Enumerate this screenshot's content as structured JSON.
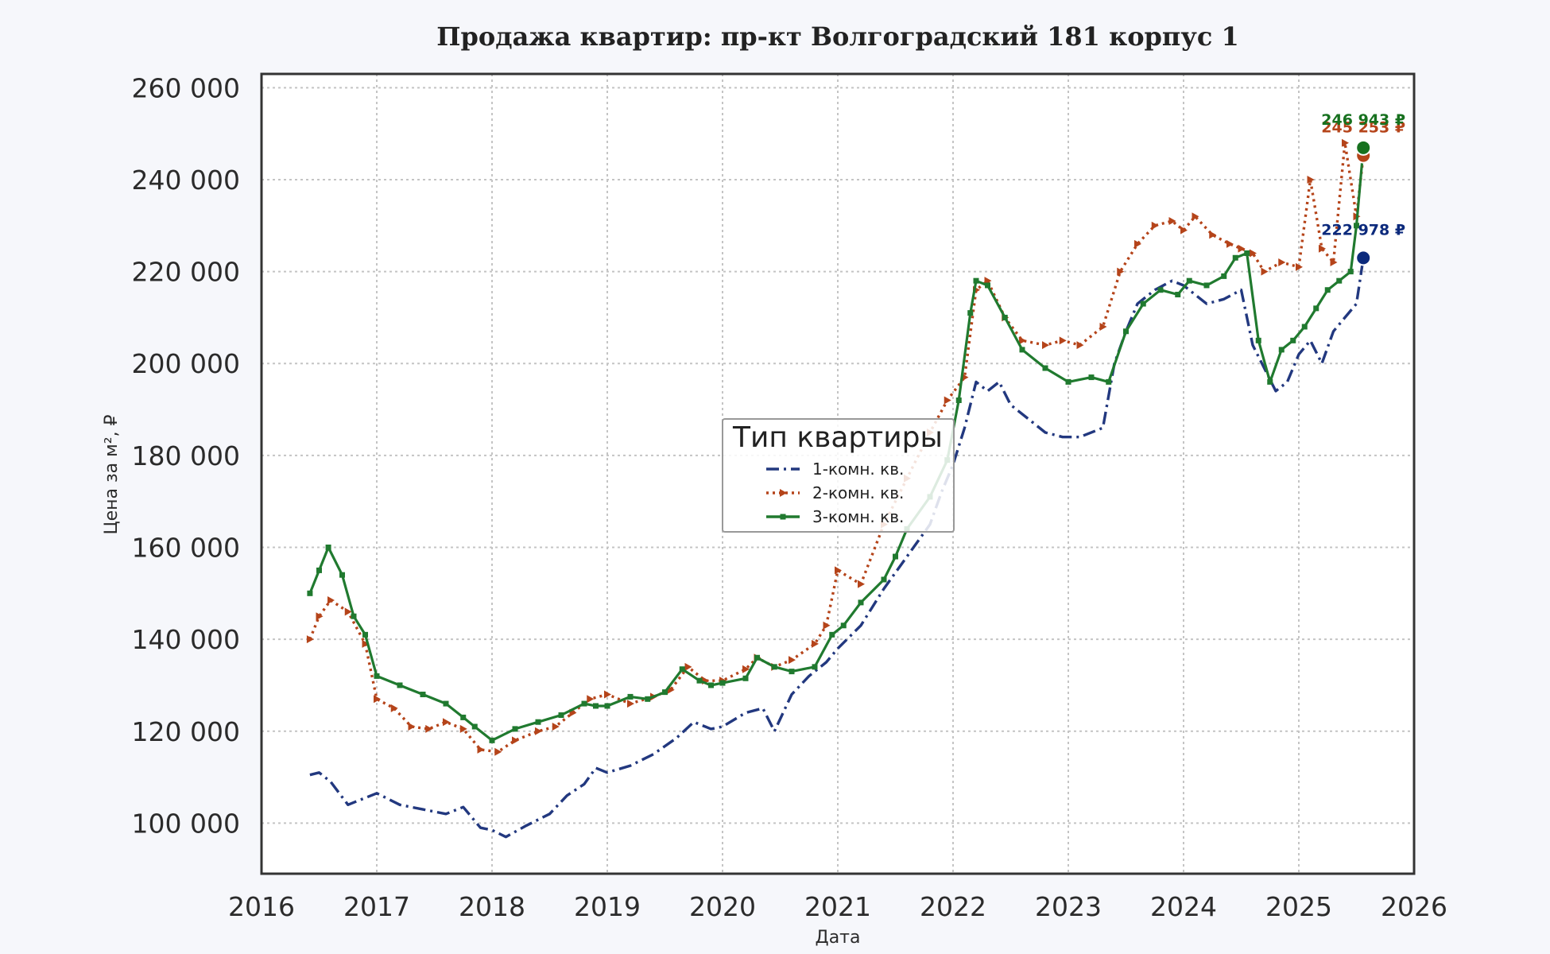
{
  "chart_data": {
    "type": "line",
    "title": "Продажа квартир: пр-кт Волгоградский 181 корпус 1",
    "xlabel": "Дата",
    "ylabel": "Цена за м², ₽",
    "xlim": [
      2016.0,
      2026.0
    ],
    "ylim": [
      89000,
      263000
    ],
    "x_ticks": [
      2016,
      2017,
      2018,
      2019,
      2020,
      2021,
      2022,
      2023,
      2024,
      2025,
      2026
    ],
    "y_ticks": [
      100000,
      120000,
      140000,
      160000,
      180000,
      200000,
      220000,
      240000,
      260000
    ],
    "y_tick_labels": [
      "100 000",
      "120 000",
      "140 000",
      "160 000",
      "180 000",
      "200 000",
      "220 000",
      "240 000",
      "260 000"
    ],
    "grid": true,
    "legend": {
      "title": "Тип квартиры",
      "position": "center"
    },
    "series": [
      {
        "name": "1-комн. кв.",
        "color": "#22387f",
        "style": "dashdot",
        "x": [
          2016.42,
          2016.5,
          2016.6,
          2016.75,
          2016.9,
          2017.0,
          2017.2,
          2017.4,
          2017.6,
          2017.75,
          2017.9,
          2018.0,
          2018.12,
          2018.3,
          2018.5,
          2018.65,
          2018.8,
          2018.9,
          2019.0,
          2019.2,
          2019.4,
          2019.6,
          2019.75,
          2019.9,
          2020.0,
          2020.2,
          2020.35,
          2020.45,
          2020.6,
          2020.75,
          2020.9,
          2021.0,
          2021.2,
          2021.4,
          2021.6,
          2021.8,
          2021.9,
          2022.0,
          2022.1,
          2022.2,
          2022.3,
          2022.4,
          2022.5,
          2022.65,
          2022.8,
          2022.95,
          2023.1,
          2023.3,
          2023.4,
          2023.5,
          2023.6,
          2023.75,
          2023.9,
          2024.0,
          2024.2,
          2024.35,
          2024.5,
          2024.6,
          2024.7,
          2024.8,
          2024.9,
          2025.0,
          2025.1,
          2025.2,
          2025.3,
          2025.4,
          2025.5,
          2025.56
        ],
        "values": [
          110500,
          111000,
          109000,
          104000,
          105500,
          106500,
          104000,
          103000,
          102000,
          103500,
          99000,
          98500,
          97000,
          99500,
          102000,
          106000,
          108500,
          112000,
          111000,
          112500,
          115000,
          118500,
          122000,
          120500,
          121000,
          124000,
          125000,
          120000,
          128000,
          132000,
          135000,
          138000,
          143000,
          151000,
          158000,
          165000,
          172000,
          178000,
          186000,
          196000,
          194000,
          196000,
          191000,
          188000,
          185000,
          184000,
          184000,
          186000,
          200000,
          207000,
          213000,
          216000,
          218000,
          217000,
          213000,
          214000,
          216000,
          204000,
          199000,
          194000,
          196000,
          202000,
          205000,
          200000,
          207000,
          210000,
          213000,
          222978
        ]
      },
      {
        "name": "2-комн. кв.",
        "color": "#b5441a",
        "style": "dotted",
        "x": [
          2016.42,
          2016.5,
          2016.6,
          2016.75,
          2016.9,
          2017.0,
          2017.15,
          2017.3,
          2017.45,
          2017.6,
          2017.75,
          2017.9,
          2018.05,
          2018.2,
          2018.4,
          2018.55,
          2018.7,
          2018.85,
          2019.0,
          2019.2,
          2019.4,
          2019.55,
          2019.7,
          2019.85,
          2020.0,
          2020.2,
          2020.3,
          2020.45,
          2020.6,
          2020.8,
          2020.9,
          2021.0,
          2021.2,
          2021.4,
          2021.6,
          2021.8,
          2021.95,
          2022.1,
          2022.2,
          2022.3,
          2022.45,
          2022.6,
          2022.8,
          2022.95,
          2023.1,
          2023.3,
          2023.45,
          2023.6,
          2023.75,
          2023.9,
          2024.0,
          2024.1,
          2024.25,
          2024.4,
          2024.5,
          2024.6,
          2024.7,
          2024.85,
          2025.0,
          2025.1,
          2025.2,
          2025.3,
          2025.4,
          2025.5,
          2025.56
        ],
        "values": [
          140000,
          145000,
          148500,
          146000,
          139000,
          127000,
          125000,
          121000,
          120500,
          122000,
          120500,
          116000,
          115500,
          118000,
          120000,
          121000,
          124000,
          127000,
          128000,
          126000,
          127500,
          129000,
          134000,
          131000,
          131000,
          133500,
          136000,
          134000,
          135500,
          139000,
          143000,
          155000,
          152000,
          165000,
          175000,
          185000,
          192000,
          197000,
          216000,
          218000,
          210000,
          205000,
          204000,
          205000,
          204000,
          208000,
          220000,
          226000,
          230000,
          231000,
          229000,
          232000,
          228000,
          226000,
          225000,
          224000,
          220000,
          222000,
          221000,
          240000,
          225000,
          222000,
          248000,
          232000,
          245253
        ]
      },
      {
        "name": "3-комн. кв.",
        "color": "#207a2f",
        "style": "solid",
        "x": [
          2016.42,
          2016.5,
          2016.58,
          2016.7,
          2016.8,
          2016.9,
          2017.0,
          2017.2,
          2017.4,
          2017.6,
          2017.75,
          2017.85,
          2018.0,
          2018.2,
          2018.4,
          2018.6,
          2018.8,
          2018.9,
          2019.0,
          2019.2,
          2019.35,
          2019.5,
          2019.65,
          2019.8,
          2019.9,
          2020.0,
          2020.2,
          2020.3,
          2020.45,
          2020.6,
          2020.8,
          2020.95,
          2021.05,
          2021.2,
          2021.4,
          2021.5,
          2021.6,
          2021.8,
          2021.95,
          2022.05,
          2022.15,
          2022.2,
          2022.3,
          2022.45,
          2022.6,
          2022.8,
          2023.0,
          2023.2,
          2023.35,
          2023.5,
          2023.65,
          2023.8,
          2023.95,
          2024.05,
          2024.2,
          2024.35,
          2024.45,
          2024.55,
          2024.65,
          2024.75,
          2024.85,
          2024.95,
          2025.05,
          2025.15,
          2025.25,
          2025.35,
          2025.45,
          2025.5,
          2025.56
        ],
        "values": [
          150000,
          155000,
          160000,
          154000,
          145000,
          141000,
          132000,
          130000,
          128000,
          126000,
          123000,
          121000,
          118000,
          120500,
          122000,
          123500,
          126000,
          125500,
          125500,
          127500,
          127000,
          128500,
          133500,
          131000,
          130000,
          130500,
          131500,
          136000,
          134000,
          133000,
          134000,
          141000,
          143000,
          148000,
          153000,
          158000,
          164000,
          171000,
          179000,
          192000,
          211000,
          218000,
          217000,
          210000,
          203000,
          199000,
          196000,
          197000,
          196000,
          207000,
          213000,
          216000,
          215000,
          218000,
          217000,
          219000,
          223000,
          224000,
          205000,
          196000,
          203000,
          205000,
          208000,
          212000,
          216000,
          218000,
          220000,
          230000,
          246943
        ]
      }
    ],
    "end_markers": [
      {
        "series": "1-комн. кв.",
        "x": 2025.56,
        "y": 222978,
        "label": "222 978 ₽",
        "color": "#0c2a7c"
      },
      {
        "series": "2-комн. кв.",
        "x": 2025.56,
        "y": 245253,
        "label": "245 253 ₽",
        "color": "#b5441a"
      },
      {
        "series": "3-комн. кв.",
        "x": 2025.56,
        "y": 246943,
        "label": "246 943 ₽",
        "color": "#17711f"
      }
    ]
  }
}
